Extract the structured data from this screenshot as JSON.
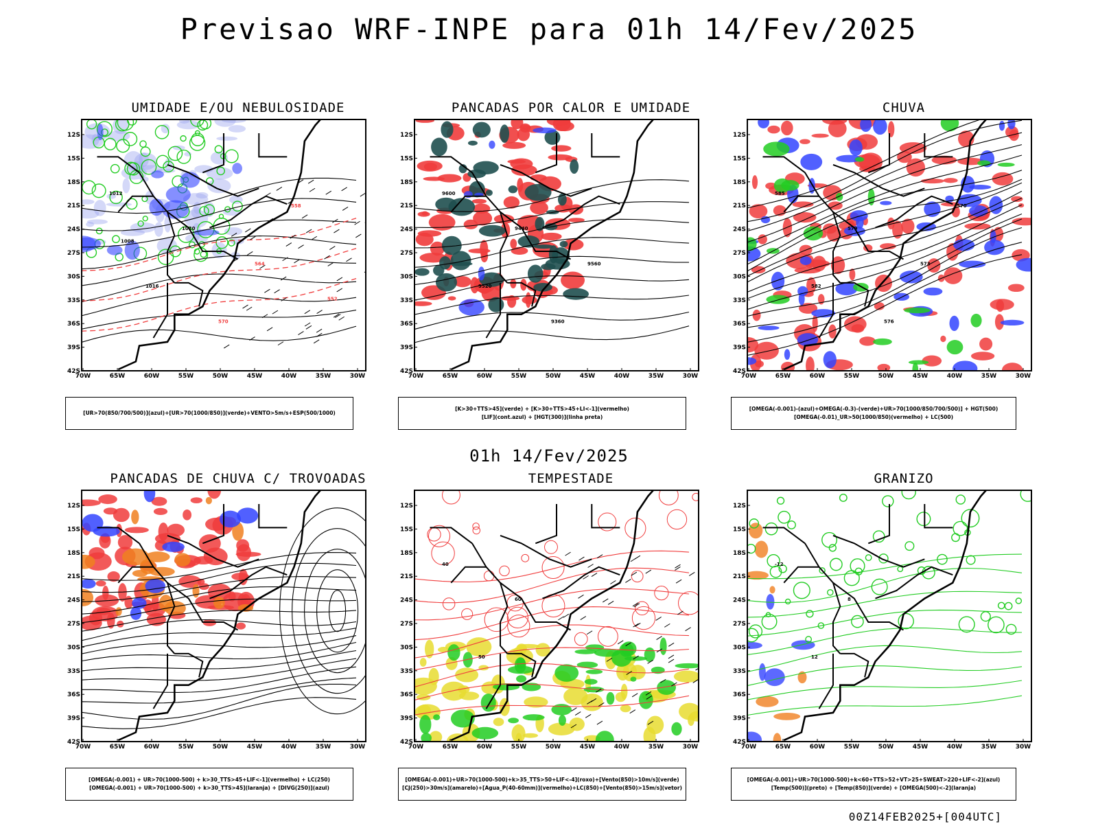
{
  "title": "Previsao WRF-INPE  para 01h 14/Fev/2025",
  "mid_title": "01h 14/Fev/2025",
  "footer": "00Z14FEB2025+[004UTC]",
  "axes": {
    "lat_labels": [
      "12S",
      "15S",
      "18S",
      "21S",
      "24S",
      "27S",
      "30S",
      "33S",
      "36S",
      "39S",
      "42S"
    ],
    "lon_labels": [
      "70W",
      "65W",
      "60W",
      "55W",
      "50W",
      "45W",
      "40W",
      "35W",
      "30W"
    ]
  },
  "colors": {
    "red": "#f03c3c",
    "green": "#22cc22",
    "blue": "#3344ff",
    "lavender": "#a0a8f0",
    "dark_teal": "#1f4f4f",
    "yellow": "#e8dc30",
    "orange": "#f08020",
    "black": "#000000"
  },
  "panels": [
    {
      "title": "UMIDADE E/OU NEBULOSIDADE",
      "legend": [
        "[UR>70(850/700/500)](azul)+[UR>70(1000/850)](verde)+VENTO>5m/s+ESP(500/1000)"
      ],
      "contour_labels": [
        "1012",
        "1016",
        "1020",
        "570",
        "564",
        "558",
        "552",
        "1008"
      ]
    },
    {
      "title": "PANCADAS POR CALOR E UMIDADE",
      "legend": [
        "[K>30+TTS>45](verde)  +  [K>30+TTS>45+LI<-1](vermelho)",
        "[LIF](cont.azul)  +  [HGT(300)](linha preta)"
      ],
      "contour_labels": [
        "9600",
        "9520",
        "9440",
        "9360",
        "9560"
      ]
    },
    {
      "title": "CHUVA",
      "legend": [
        "[OMEGA(-0.001)-(azul)+OMEGA(-0.3)-(verde)+UR>70(1000/850/700/500)] + HGT(500)",
        "[OMEGA(-0.01)_UR>50(1000/850)(vermelho) + LC(500)"
      ],
      "contour_labels": [
        "585",
        "582",
        "579",
        "576",
        "573",
        "570"
      ]
    },
    {
      "title": "PANCADAS DE CHUVA C/ TROVOADAS",
      "legend": [
        "[OMEGA(-0.001) + UR>70(1000-500) + k>30_TTS>45+LIF<-1](vermelho) + LC(250)",
        "[OMEGA(-0.001) + UR>70(1000-500) + k>30_TTS>45](laranja) + [DIVG(250)](azul)"
      ],
      "contour_labels": []
    },
    {
      "title": "TEMPESTADE",
      "legend": [
        "[OMEGA(-0.001)+UR>70(1000-500)+k>35_TTS>50+LIF<-4](roxo)+[Vento(850)>10m/s](verde)",
        "[CJ(250)>30m/s](amarelo)+[Agua_P(40-60mm)](vermelho)+LC(850)+[Vento(850)>15m/s](vetor)"
      ],
      "contour_labels": [
        "40",
        "50",
        "60"
      ]
    },
    {
      "title": "GRANIZO",
      "legend": [
        "[OMEGA(-0.001)+UR>70(1000-500)+k<60+TTS>52+VT>25+SWEAT>220+LIF<-2](azul)",
        "[Temp(500)](preto) + [Temp(850)](verde) + [OMEGA(500)<-2](laranja)"
      ],
      "contour_labels": [
        "-12",
        "12",
        "8"
      ]
    }
  ]
}
